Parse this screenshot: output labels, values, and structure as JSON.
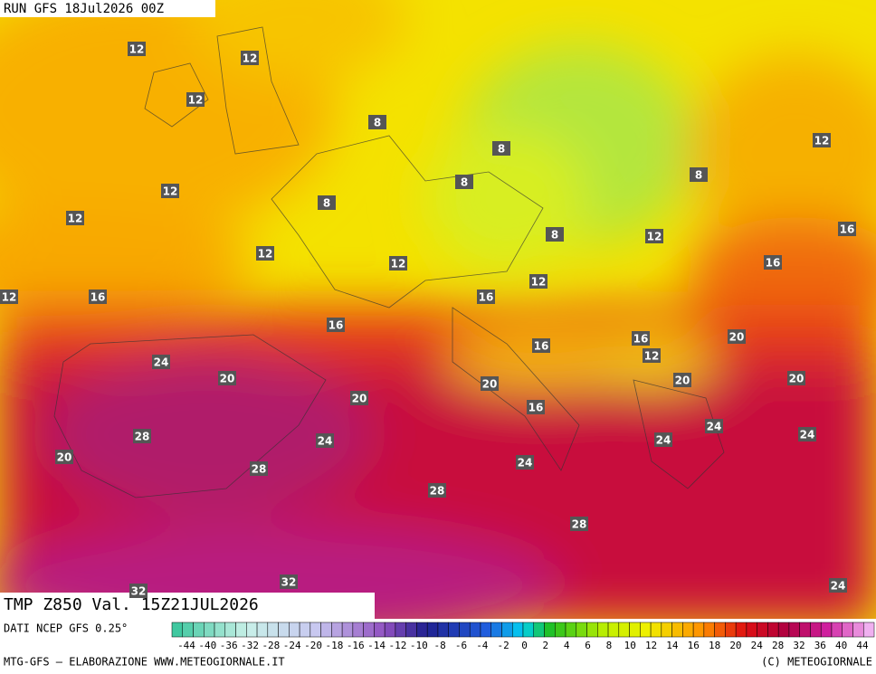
{
  "header": {
    "run": "RUN GFS 18Jul2026 00Z"
  },
  "map": {
    "labels": [
      12,
      12,
      12,
      8,
      8,
      12,
      8,
      12,
      8,
      8,
      12,
      16,
      8,
      12,
      12,
      12,
      16,
      12,
      16,
      12,
      16,
      16,
      16,
      20,
      16,
      12,
      24,
      20,
      20,
      20,
      20,
      20,
      16,
      24,
      24,
      28,
      24,
      24,
      20,
      24,
      28,
      28,
      28,
      32,
      24,
      32
    ]
  },
  "footer": {
    "field": "TMP  Z850  Val. 15Z21JUL2026",
    "source": "DATI NCEP GFS 0.25°",
    "credit": "MTG-GFS — ELABORAZIONE WWW.METEOGIORNALE.IT",
    "copyright": "(C) METEOGIORNALE"
  },
  "legend": {
    "ticks": [
      -44,
      -40,
      -36,
      -32,
      -28,
      -24,
      -20,
      -18,
      -16,
      -14,
      -12,
      -10,
      -8,
      -6,
      -4,
      -2,
      0,
      2,
      4,
      6,
      8,
      10,
      12,
      14,
      16,
      18,
      20,
      24,
      28,
      32,
      36,
      40,
      44
    ]
  }
}
